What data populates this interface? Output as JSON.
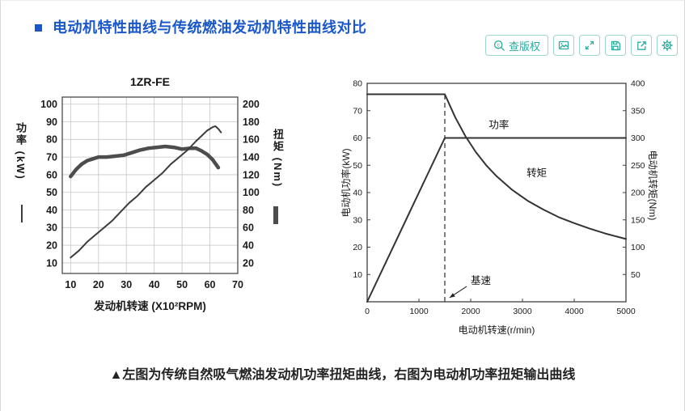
{
  "page": {
    "title": "电动机特性曲线与传统燃油发动机特性曲线对比",
    "caption": "▲左图为传统自然吸气燃油发动机功率扭矩曲线，右图为电动机功率扭矩输出曲线",
    "accent_blue": "#1a57c9",
    "accent_teal": "#2aab9e"
  },
  "toolbar": {
    "copyright_label": "查版权",
    "icons": [
      "copyright-search-icon",
      "image-icon",
      "fullscreen-icon",
      "save-icon",
      "share-icon",
      "settings-icon"
    ]
  },
  "chart_data": [
    {
      "type": "line",
      "title": "1ZR-FE",
      "xlabel": "发动机转速 (X10²RPM)",
      "x_ticks": [
        10,
        20,
        30,
        40,
        50,
        60,
        70
      ],
      "xlim": [
        7,
        70
      ],
      "grid": true,
      "legend_note": "thin line = power, thick line = torque",
      "left_axis": {
        "label": "功率 (kW)",
        "ticks": [
          10,
          20,
          30,
          40,
          50,
          60,
          70,
          80,
          90,
          100
        ],
        "lim": [
          4,
          104
        ]
      },
      "right_axis": {
        "label": "扭矩 (Nm)",
        "ticks": [
          20,
          40,
          60,
          80,
          100,
          120,
          140,
          160,
          180,
          200
        ],
        "lim": [
          8,
          208
        ]
      },
      "series": [
        {
          "name": "扭矩",
          "axis": "right",
          "color": "#4d4d4d",
          "width": 4.5,
          "points": [
            [
              10,
              118
            ],
            [
              12,
              126
            ],
            [
              14,
              132
            ],
            [
              16,
              136
            ],
            [
              18,
              138
            ],
            [
              20,
              140
            ],
            [
              23,
              140
            ],
            [
              26,
              141
            ],
            [
              29,
              142
            ],
            [
              32,
              145
            ],
            [
              35,
              148
            ],
            [
              38,
              150
            ],
            [
              41,
              151
            ],
            [
              44,
              152
            ],
            [
              47,
              151
            ],
            [
              50,
              149
            ],
            [
              53,
              150
            ],
            [
              55,
              150
            ],
            [
              57,
              147
            ],
            [
              59,
              143
            ],
            [
              61,
              137
            ],
            [
              63,
              128
            ]
          ]
        },
        {
          "name": "功率",
          "axis": "left",
          "color": "#3c3c3c",
          "width": 2,
          "points": [
            [
              10,
              13
            ],
            [
              13,
              17
            ],
            [
              16,
              22
            ],
            [
              19,
              26
            ],
            [
              22,
              30
            ],
            [
              25,
              34
            ],
            [
              28,
              39
            ],
            [
              31,
              44
            ],
            [
              34,
              48
            ],
            [
              37,
              53
            ],
            [
              40,
              57
            ],
            [
              43,
              61
            ],
            [
              46,
              66
            ],
            [
              49,
              70
            ],
            [
              52,
              74
            ],
            [
              55,
              79
            ],
            [
              57,
              82
            ],
            [
              59,
              85
            ],
            [
              61,
              87
            ],
            [
              62,
              87.5
            ],
            [
              63,
              86
            ],
            [
              64,
              84
            ]
          ]
        }
      ]
    },
    {
      "type": "line",
      "title": "",
      "xlabel": "电动机转速(r/min)",
      "x_ticks": [
        0,
        1000,
        2000,
        3000,
        4000,
        5000
      ],
      "xlim": [
        0,
        5000
      ],
      "grid": false,
      "left_axis": {
        "label": "电动机功率(kW)",
        "ticks": [
          10,
          20,
          30,
          40,
          50,
          60,
          70,
          80
        ],
        "lim": [
          0,
          80
        ]
      },
      "right_axis": {
        "label": "电动机转矩(Nm)",
        "ticks": [
          50,
          100,
          150,
          200,
          250,
          300,
          350,
          400
        ],
        "lim": [
          0,
          400
        ]
      },
      "vline": {
        "x": 1500,
        "y1": 0,
        "y2": 76,
        "style": "dashed"
      },
      "series": [
        {
          "name": "转矩",
          "axis": "right",
          "color": "#333333",
          "width": 2,
          "points": [
            [
              0,
              380
            ],
            [
              1500,
              380
            ],
            [
              1700,
              338
            ],
            [
              1900,
              303
            ],
            [
              2100,
              274
            ],
            [
              2300,
              250
            ],
            [
              2500,
              230
            ],
            [
              2800,
              205
            ],
            [
              3100,
              185
            ],
            [
              3400,
              169
            ],
            [
              3700,
              155
            ],
            [
              4000,
              144
            ],
            [
              4300,
              134
            ],
            [
              4600,
              125
            ],
            [
              5000,
              115
            ]
          ]
        },
        {
          "name": "功率",
          "axis": "left",
          "color": "#333333",
          "width": 2,
          "points": [
            [
              0,
              0
            ],
            [
              1500,
              60
            ],
            [
              5000,
              60
            ]
          ]
        }
      ],
      "annotations": [
        {
          "text": "功率",
          "x": 2350,
          "y": 63.5
        },
        {
          "text": "转矩",
          "x": 3080,
          "y": 46
        },
        {
          "text": "基速",
          "x": 2000,
          "y": 6.5,
          "arrow_to": [
            1560,
            1.5
          ]
        }
      ]
    }
  ]
}
